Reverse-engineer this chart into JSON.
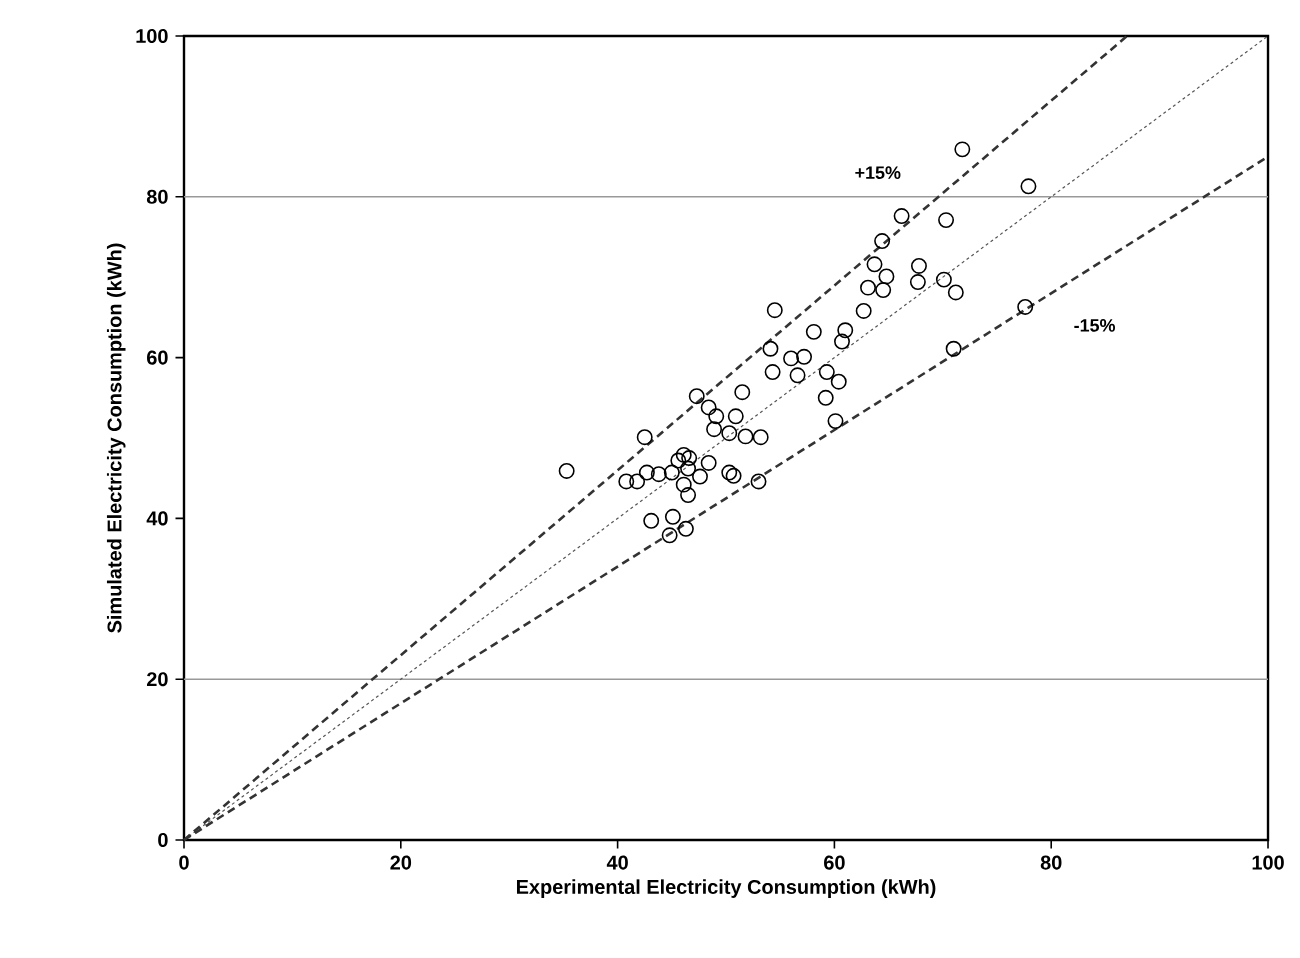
{
  "chart_data": {
    "type": "scatter",
    "xlabel": "Experimental Electricity Consumption (kWh)",
    "ylabel": "Simulated Electricity Consumption (kWh)",
    "xlim": [
      0,
      100
    ],
    "ylim": [
      0,
      100
    ],
    "xticks": [
      0,
      20,
      40,
      60,
      80,
      100
    ],
    "yticks": [
      0,
      20,
      40,
      60,
      80,
      100
    ],
    "grid": false,
    "series": [
      {
        "color": "#000000",
        "marker": "circle",
        "x": [
          71.8,
          77.9,
          66.2,
          70.3,
          64.4,
          63.7,
          64.8,
          67.8,
          67.7,
          70.1,
          71.2,
          63.1,
          64.5,
          62.7,
          61.0,
          60.7,
          77.6,
          71.0,
          54.5,
          58.1,
          54.1,
          56.0,
          57.2,
          54.3,
          56.6,
          59.3,
          60.4,
          59.2,
          60.1,
          51.5,
          47.3,
          48.4,
          49.1,
          50.9,
          48.9,
          50.3,
          51.8,
          53.2,
          42.5,
          35.3,
          40.8,
          41.8,
          42.7,
          43.8,
          45.0,
          46.1,
          46.6,
          48.4,
          46.5,
          47.6,
          46.1,
          46.5,
          50.3,
          50.7,
          53.0,
          43.1,
          45.1,
          44.8,
          46.3,
          45.6
        ],
        "values": [
          85.9,
          81.3,
          77.6,
          77.1,
          74.5,
          71.6,
          70.1,
          71.4,
          69.4,
          69.7,
          68.1,
          68.7,
          68.4,
          65.8,
          63.4,
          62.0,
          66.3,
          61.1,
          65.9,
          63.2,
          61.1,
          59.9,
          60.1,
          58.2,
          57.8,
          58.2,
          57.0,
          55.0,
          52.1,
          55.7,
          55.2,
          53.8,
          52.7,
          52.7,
          51.1,
          50.6,
          50.2,
          50.1,
          50.1,
          45.9,
          44.6,
          44.6,
          45.7,
          45.5,
          45.7,
          47.9,
          47.5,
          46.9,
          46.2,
          45.2,
          44.2,
          42.9,
          45.7,
          45.3,
          44.6,
          39.7,
          40.2,
          37.9,
          38.7,
          47.2
        ]
      },
      {
        "type": "line",
        "color": "#555555",
        "marker": "none",
        "line_style": "dotted",
        "x": [
          0,
          100
        ],
        "values": [
          0,
          100
        ]
      },
      {
        "type": "line",
        "color": "#333333",
        "marker": "none",
        "line_style": "dashed",
        "x": [
          0,
          87
        ],
        "values": [
          0,
          100
        ]
      },
      {
        "type": "line",
        "color": "#333333",
        "marker": "none",
        "line_style": "dashed",
        "x": [
          0,
          100
        ],
        "values": [
          0,
          85
        ]
      }
    ],
    "ref_lines": [
      {
        "axis": "y",
        "value": 20,
        "color": "#999999"
      },
      {
        "axis": "y",
        "value": 80,
        "color": "#999999"
      }
    ],
    "annotations": [
      "+15%",
      "-15%"
    ]
  }
}
